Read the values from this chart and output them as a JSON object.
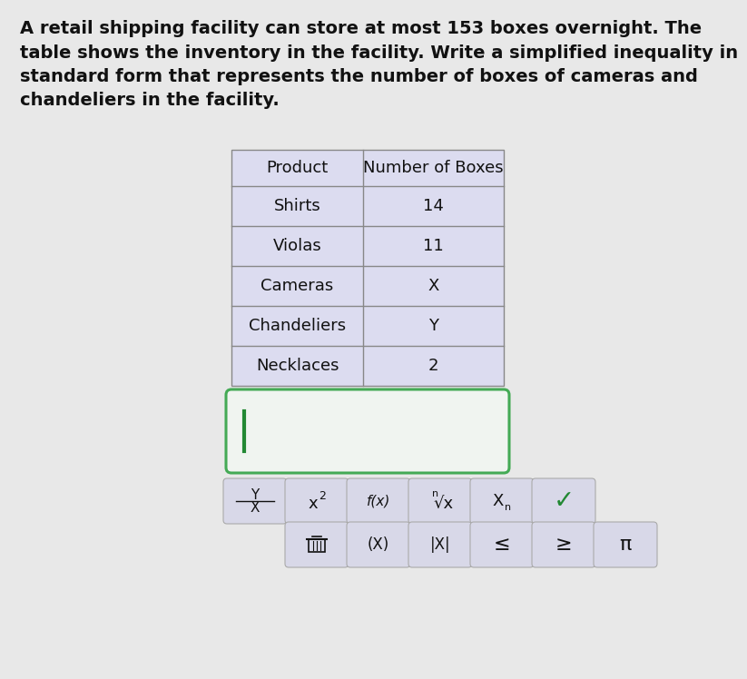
{
  "background_color": "#e8e8e8",
  "paragraph_text": "A retail shipping facility can store at most 153 boxes overnight. The\ntable shows the inventory in the facility. Write a simplified inequality in\nstandard form that represents the number of boxes of cameras and\nchandeliers in the facility.",
  "paragraph_fontsize": 14,
  "table_header": [
    "Product",
    "Number of Boxes"
  ],
  "table_rows": [
    [
      "Shirts",
      "14"
    ],
    [
      "Violas",
      "11"
    ],
    [
      "Cameras",
      "X"
    ],
    [
      "Chandeliers",
      "Y"
    ],
    [
      "Necklaces",
      "2"
    ]
  ],
  "table_bg_color": "#dcdcf0",
  "table_border_color": "#888888",
  "answer_box_color": "#f0f4f0",
  "answer_box_border": "#44aa55",
  "button_bg": "#d8d8e8",
  "button_border": "#aaaaaa",
  "checkmark_color": "#228833",
  "text_color": "#111111"
}
